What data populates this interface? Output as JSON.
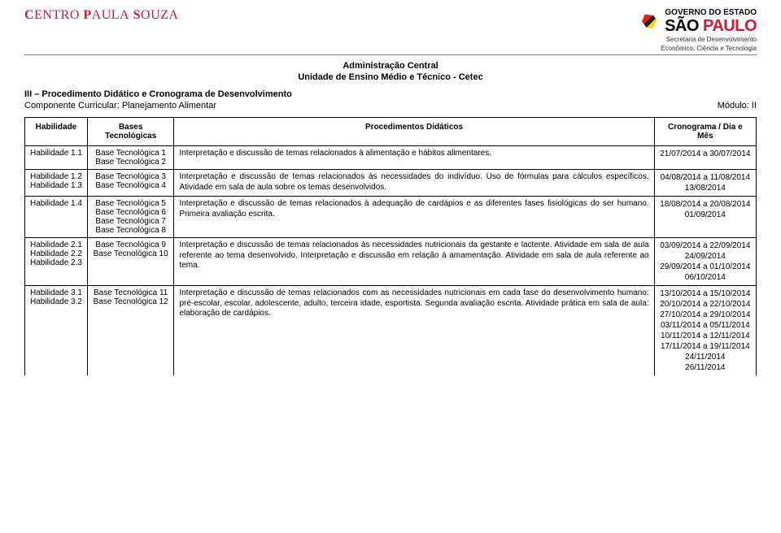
{
  "logos": {
    "left_logo_text": "CENTRO PAULA SOUZA",
    "gov_line": "GOVERNO DO ESTADO",
    "sp_text_sao": "SÃO ",
    "sp_text_paulo": "PAULO",
    "secretaria_l1": "Secretaria de Desenvolvimento",
    "secretaria_l2": "Econômico, Ciência e Tecnologia"
  },
  "central": {
    "line1": "Administração Central",
    "line2": "Unidade de Ensino Médio e Técnico - Cetec"
  },
  "section": {
    "title": "III – Procedimento Didático e Cronograma de Desenvolvimento",
    "component_label": "Componente Curricular: Planejamento Alimentar",
    "module_label": "Módulo: II"
  },
  "table": {
    "headers": {
      "habilidade": "Habilidade",
      "bases": "Bases Tecnológicas",
      "procedimentos": "Procedimentos Didáticos",
      "cronograma": "Cronograma / Dia e Mês"
    },
    "rows": [
      {
        "hab": "Habilidade 1.1",
        "bases": "Base Tecnológica 1\nBase Tecnológica 2",
        "proc": "Interpretação e discussão de temas relacionados à alimentação e hábitos alimentares.",
        "crono": "21/07/2014 a 30/07/2014"
      },
      {
        "hab": "Habilidade 1.2\nHabilidade 1.3",
        "bases": "Base Tecnológica 3\nBase Tecnológica 4",
        "proc": "Interpretação e discussão de temas relacionados às necessidades do indivíduo. Uso de fórmulas para cálculos específicos. Atividade em sala de aula sobre os temas desenvolvidos.",
        "crono": "04/08/2014 a 11/08/2014\n13/08/2014"
      },
      {
        "hab": "Habilidade 1.4",
        "bases": "Base Tecnológica 5\nBase Tecnológica 6\nBase Tecnológica 7\nBase Tecnológica 8",
        "proc": "Interpretação e discussão de temas relacionados à adequação de cardápios e as diferentes fases fisiológicas do ser humano. Primeira avaliação escrita.",
        "crono": "18/08/2014 a 20/08/2014\n01/09/2014"
      },
      {
        "hab": "Habilidade 2.1\nHabilidade 2.2\nHabilidade 2.3",
        "bases": "Base Tecnológica 9\nBase Tecnológica 10",
        "proc": "Interpretação e discussão de temas relacionados às necessidades nutricionais da gestante e lactente. Atividade em sala de aula referente ao tema desenvolvido. Interpretação e discussão em relação á amamentação. Atividade em sala de aula referente ao tema.",
        "crono": "03/09/2014 a 22/09/2014\n24/09/2014\n29/09/2014 a 01/10/2014\n06/10/2014"
      },
      {
        "hab": "Habilidade 3.1\nHabilidade 3.2",
        "bases": "Base Tecnológica 11\nBase Tecnológica 12",
        "proc": "Interpretação e discussão de temas relacionados com as necessidades nutricionais em cada fase do desenvolvimento humano: pré-escolar, escolar, adolescente, adulto, terceira idade, esportista. Segunda avaliação escrita. Atividade prática em sala de aula: elaboração de cardápios.",
        "crono": "13/10/2014 a 15/10/2014\n20/10/2014 a 22/10/2014\n27/10/2014 a 29/10/2014\n03/11/2014 a 05/11/2014\n10/11/2014 a 12/11/2014\n17/11/2014 a 19/11/2014\n24/11/2014\n26/11/2014"
      }
    ]
  }
}
